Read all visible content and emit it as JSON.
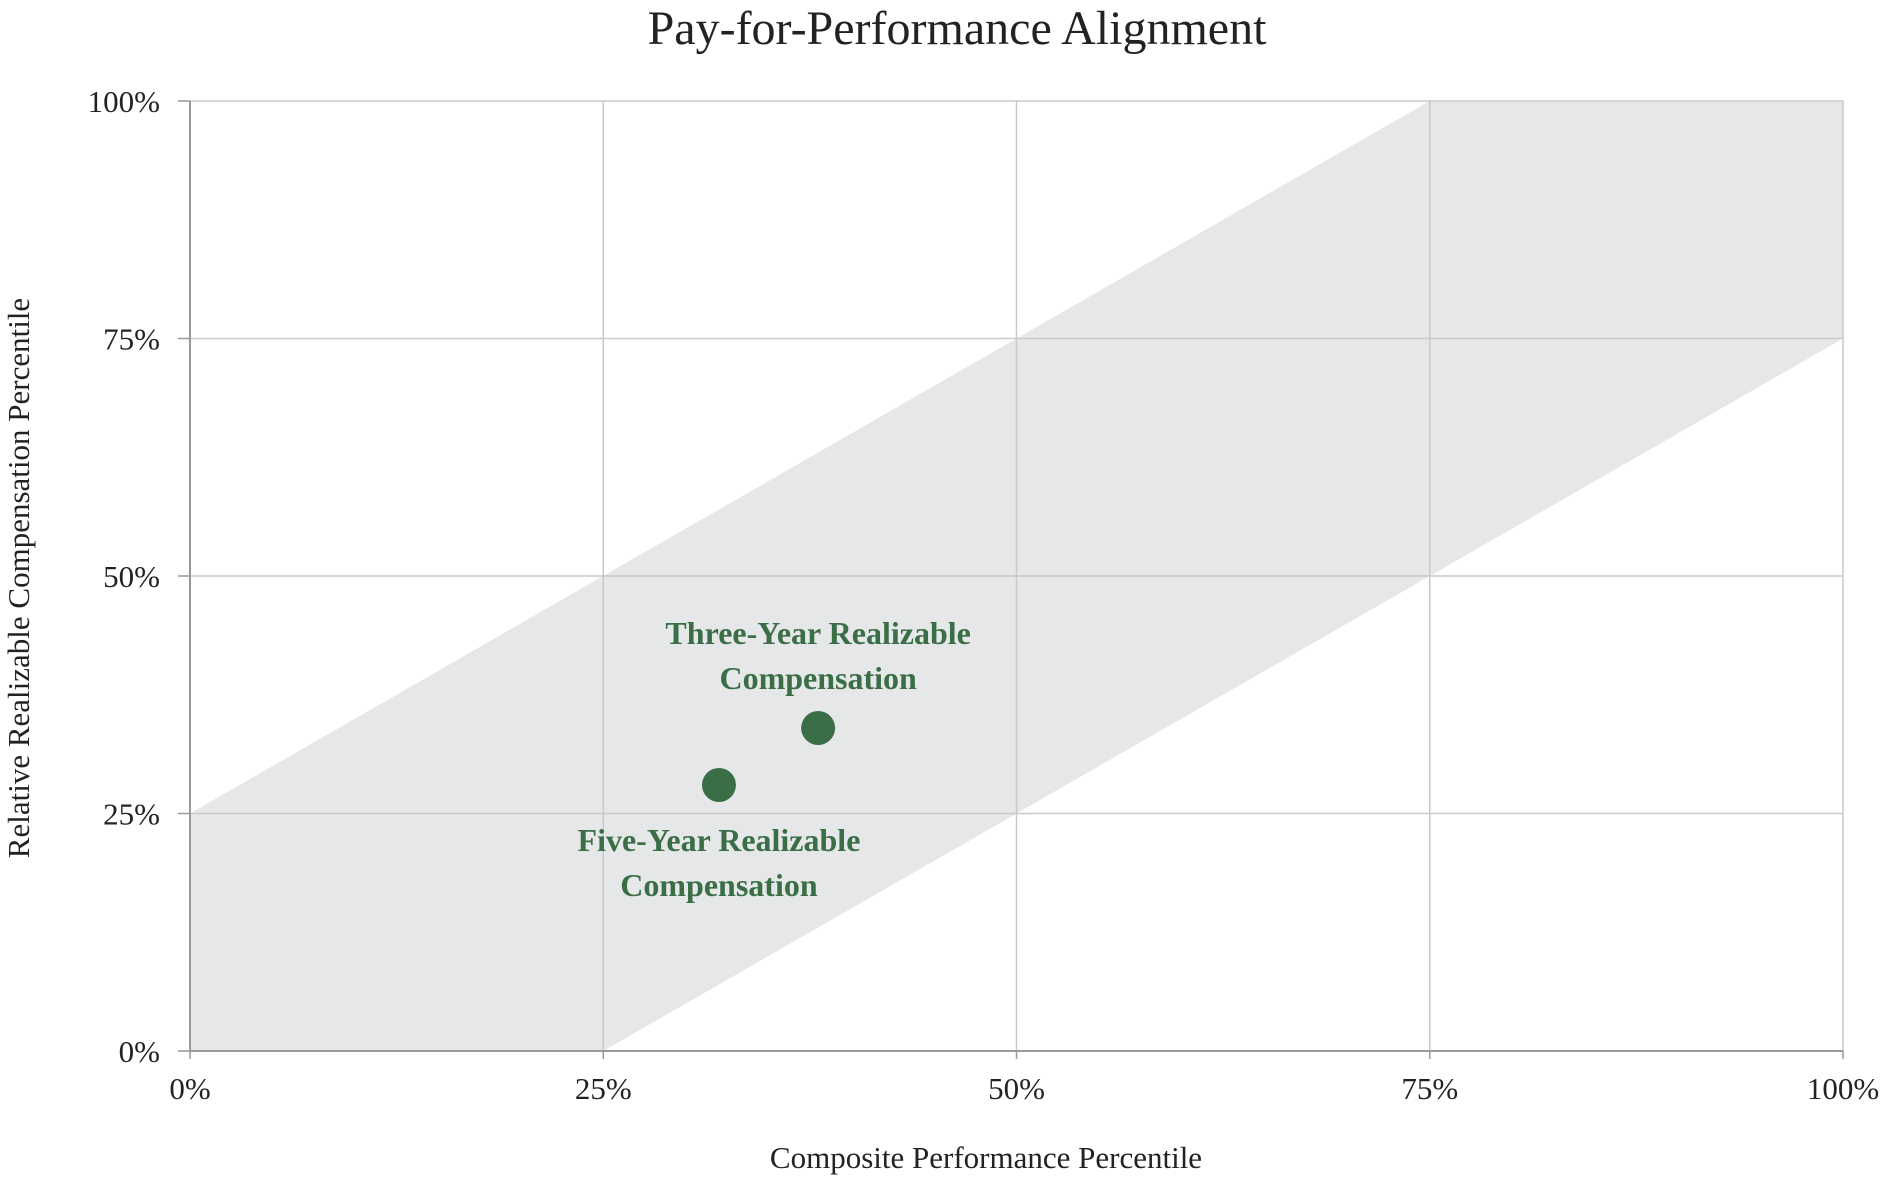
{
  "chart_data": {
    "type": "scatter",
    "title": "Pay-for-Performance Alignment",
    "xlabel": "Composite Performance Percentile",
    "ylabel": "Relative Realizable Compensation Percentile",
    "xlim": [
      0,
      100
    ],
    "ylim": [
      0,
      100
    ],
    "x_ticks": [
      "0%",
      "25%",
      "50%",
      "75%",
      "100%"
    ],
    "y_ticks": [
      "0%",
      "25%",
      "50%",
      "75%",
      "100%"
    ],
    "tick_values": [
      0,
      25,
      50,
      75,
      100
    ],
    "grid": true,
    "alignment_band": {
      "description_points": [
        [
          0,
          0
        ],
        [
          0,
          25
        ],
        [
          75,
          100
        ],
        [
          100,
          100
        ],
        [
          100,
          75
        ],
        [
          25,
          0
        ]
      ],
      "color": "#e6e7e8"
    },
    "points": [
      {
        "label_line1": "Three-Year Realizable",
        "label_line2": "Compensation",
        "x": 38,
        "y": 34,
        "label_position": "above"
      },
      {
        "label_line1": "Five-Year Realizable",
        "label_line2": "Compensation",
        "x": 32,
        "y": 28,
        "label_position": "below"
      }
    ],
    "colors": {
      "point": "#3a6e47",
      "grid": "#c9c9c9",
      "band": "#e6e7e8"
    }
  }
}
